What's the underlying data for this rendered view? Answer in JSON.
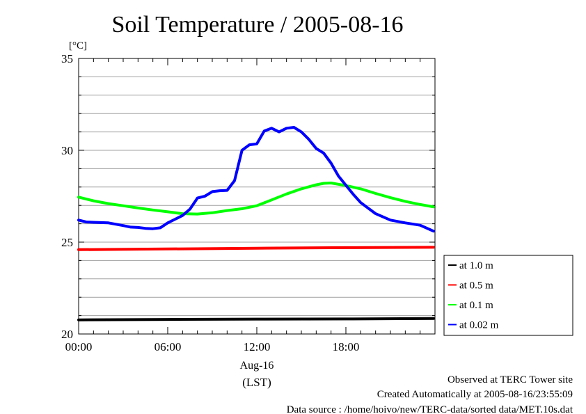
{
  "chart_data": {
    "type": "line",
    "title": "Soil Temperature / 2005-08-16",
    "yunit": "[°C]",
    "ylim": [
      20,
      35
    ],
    "yticks": [
      {
        "value": 20,
        "label": "20"
      },
      {
        "value": 25,
        "label": "25"
      },
      {
        "value": 30,
        "label": "30"
      },
      {
        "value": 35,
        "label": "35"
      }
    ],
    "xlim": [
      0,
      24
    ],
    "xticks": [
      {
        "value": 0,
        "label": "00:00"
      },
      {
        "value": 6,
        "label": "06:00"
      },
      {
        "value": 12,
        "label": "12:00"
      },
      {
        "value": 18,
        "label": "18:00"
      }
    ],
    "date_label": "Aug-16",
    "xunit": "(LST)",
    "grid": true,
    "legend_position": "right",
    "series": [
      {
        "name": "at 1.0 m",
        "color": "#000000",
        "x": [
          0,
          6,
          12,
          18,
          23.9
        ],
        "y": [
          20.77,
          20.79,
          20.81,
          20.82,
          20.84
        ]
      },
      {
        "name": "at 0.5 m",
        "color": "#ff0000",
        "x": [
          0,
          6,
          12,
          18,
          23.9
        ],
        "y": [
          24.59,
          24.63,
          24.67,
          24.7,
          24.72
        ]
      },
      {
        "name": "at 0.1 m",
        "color": "#00ff00",
        "x": [
          0,
          1,
          2,
          3,
          4,
          5,
          6,
          7,
          8,
          9,
          10,
          11,
          12,
          13,
          14,
          15,
          16,
          16.5,
          17,
          18,
          19,
          20,
          21,
          22,
          23,
          23.9
        ],
        "y": [
          27.45,
          27.25,
          27.1,
          26.98,
          26.86,
          26.75,
          26.65,
          26.55,
          26.53,
          26.6,
          26.72,
          26.82,
          26.98,
          27.3,
          27.62,
          27.9,
          28.12,
          28.2,
          28.22,
          28.08,
          27.9,
          27.65,
          27.42,
          27.22,
          27.05,
          26.92
        ]
      },
      {
        "name": "at 0.02 m",
        "color": "#0000ff",
        "x": [
          0,
          0.5,
          1,
          2,
          3,
          3.5,
          4,
          4.5,
          5,
          5.5,
          6,
          6.5,
          7,
          7.5,
          8,
          8.5,
          9,
          9.5,
          10,
          10.5,
          11,
          11.5,
          12,
          12.5,
          13,
          13.5,
          14,
          14.5,
          15,
          15.5,
          16,
          16.5,
          17,
          17.5,
          18,
          18.5,
          19,
          20,
          21,
          22,
          23,
          23.9
        ],
        "y": [
          26.2,
          26.1,
          26.08,
          26.05,
          25.9,
          25.82,
          25.8,
          25.75,
          25.73,
          25.78,
          26.05,
          26.25,
          26.45,
          26.8,
          27.4,
          27.5,
          27.75,
          27.8,
          27.82,
          28.35,
          30.0,
          30.3,
          30.35,
          31.05,
          31.2,
          31.0,
          31.2,
          31.25,
          31.0,
          30.6,
          30.1,
          29.85,
          29.3,
          28.6,
          28.1,
          27.6,
          27.15,
          26.55,
          26.2,
          26.05,
          25.92,
          25.6
        ]
      }
    ]
  },
  "footer": {
    "line1": "Observed at TERC Tower site",
    "line2": "Created Automatically at 2005-08-16/23:55:09",
    "line3": "Data source : /home/hoivo/new/TERC-data/sorted  data/MET.10s.dat"
  }
}
